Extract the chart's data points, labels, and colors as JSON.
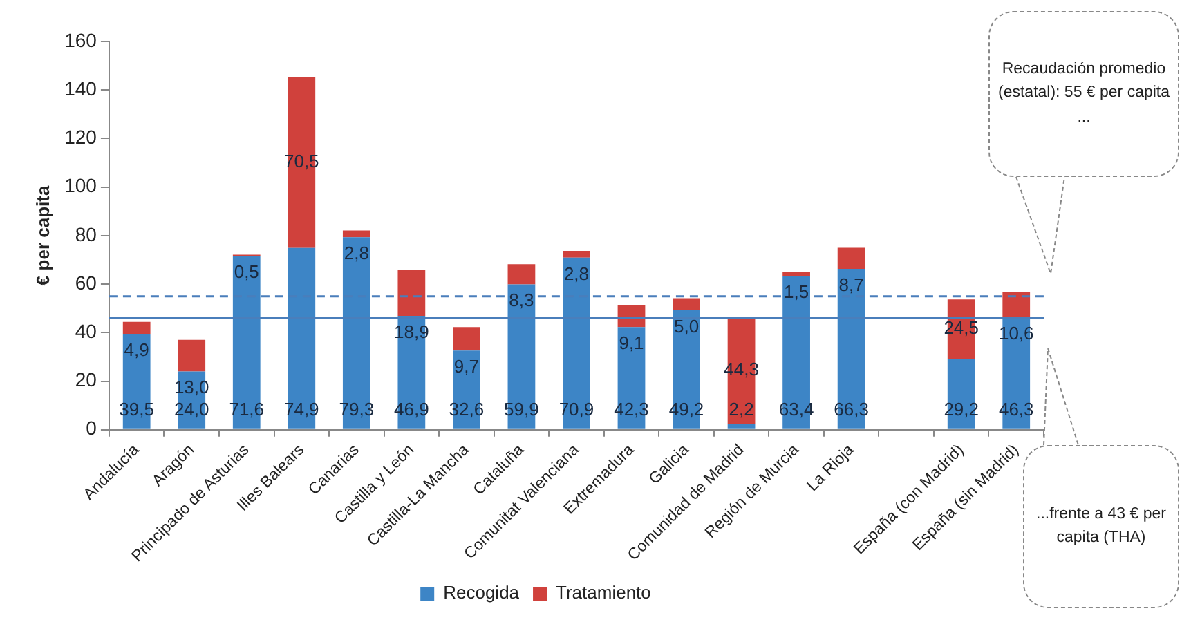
{
  "chart_data": {
    "type": "bar",
    "stacked": true,
    "ylabel": "€ per capita",
    "categories": [
      "Andalucía",
      "Aragón",
      "Principado de Asturias",
      "Illes Balears",
      "Canarias",
      "Castilla y León",
      "Castilla-La Mancha",
      "Cataluña",
      "Comunitat Valenciana",
      "Extremadura",
      "Galicia",
      "Comunidad de Madrid",
      "Región de Murcia",
      "La Rioja",
      null,
      "España (con Madrid)",
      "España (sin Madrid)"
    ],
    "series": [
      {
        "name": "Recogida",
        "color": "#3d85c6",
        "values": [
          39.5,
          24.0,
          71.6,
          74.9,
          79.3,
          46.9,
          32.6,
          59.9,
          70.9,
          42.3,
          49.2,
          2.2,
          63.4,
          66.3,
          null,
          29.2,
          46.3
        ],
        "value_labels": [
          "39,5",
          "24,0",
          "71,6",
          "74,9",
          "79,3",
          "46,9",
          "32,6",
          "59,9",
          "70,9",
          "42,3",
          "49,2",
          "2,2",
          "63,4",
          "66,3",
          null,
          "29,2",
          "46,3"
        ]
      },
      {
        "name": "Tratamiento",
        "color": "#d0413c",
        "values": [
          4.9,
          13.0,
          0.5,
          70.5,
          2.8,
          18.9,
          9.7,
          8.3,
          2.8,
          9.1,
          5.0,
          44.3,
          1.5,
          8.7,
          null,
          24.5,
          10.6
        ],
        "value_labels": [
          "4,9",
          "13,0",
          "0,5",
          "70,5",
          "2,8",
          "18,9",
          "9,7",
          "8,3",
          "2,8",
          "9,1",
          "5,0",
          "44,3",
          "1,5",
          "8,7",
          null,
          "24,5",
          "10,6"
        ]
      }
    ],
    "ylim": [
      0,
      160
    ],
    "yticks": [
      0,
      20,
      40,
      60,
      80,
      100,
      120,
      140,
      160
    ],
    "grid": false,
    "legend": "bottom",
    "ref_lines": [
      {
        "axis": "y",
        "value": 55,
        "line_style": "dashed",
        "color": "#4a7ebb"
      },
      {
        "axis": "y",
        "value": 46,
        "line_style": "solid",
        "color": "#4a7ebb"
      }
    ],
    "annotations": [
      "Recaudación promedio (estatal): 55 € per capita ...",
      "...frente a 43 € per capita (THA)"
    ]
  }
}
